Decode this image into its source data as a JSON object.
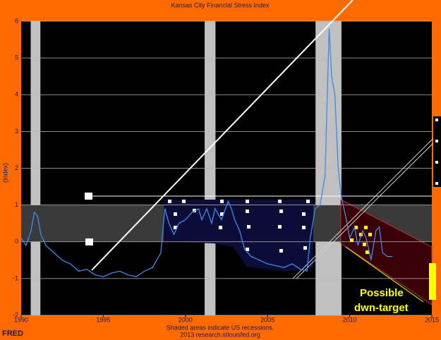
{
  "chart_data": {
    "type": "line",
    "title": "Kansas City Financial Stress Index",
    "ylabel": "(Index)",
    "x": [
      1990.0,
      1990.3,
      1990.6,
      1990.8,
      1991.0,
      1991.2,
      1991.5,
      1992.0,
      1992.5,
      1993.0,
      1993.5,
      1994.0,
      1994.5,
      1995.0,
      1995.5,
      1996.0,
      1996.5,
      1997.0,
      1997.5,
      1998.0,
      1998.5,
      1998.75,
      1999.0,
      1999.3,
      1999.6,
      2000.0,
      2000.4,
      2000.8,
      2001.0,
      2001.3,
      2001.6,
      2001.8,
      2002.2,
      2002.6,
      2002.8,
      2003.0,
      2003.3,
      2003.6,
      2004.0,
      2004.5,
      2005.0,
      2005.5,
      2006.0,
      2006.5,
      2007.0,
      2007.4,
      2007.6,
      2007.9,
      2008.2,
      2008.5,
      2008.75,
      2008.9,
      2009.1,
      2009.3,
      2009.5,
      2009.8,
      2010.0,
      2010.3,
      2010.5,
      2010.8,
      2011.0,
      2011.3,
      2011.6,
      2011.8,
      2012.0,
      2012.3,
      2012.6
    ],
    "values": [
      0.1,
      -0.1,
      0.3,
      0.8,
      0.7,
      0.2,
      -0.1,
      -0.3,
      -0.5,
      -0.6,
      -0.8,
      -0.75,
      -0.9,
      -0.95,
      -0.85,
      -0.8,
      -0.9,
      -0.95,
      -0.8,
      -0.7,
      -0.3,
      0.9,
      0.5,
      0.2,
      0.5,
      0.6,
      0.8,
      0.9,
      0.6,
      0.9,
      0.5,
      0.9,
      0.6,
      1.1,
      0.9,
      0.6,
      0.3,
      -0.2,
      -0.4,
      -0.5,
      -0.6,
      -0.65,
      -0.7,
      -0.6,
      -0.75,
      -0.8,
      0.1,
      0.9,
      1.0,
      1.8,
      5.8,
      4.5,
      4.0,
      2.0,
      1.2,
      0.6,
      0.1,
      0.4,
      -0.1,
      0.3,
      0.1,
      -0.5,
      0.3,
      0.4,
      -0.3,
      -0.4,
      -0.4
    ],
    "color": "#3d8be8",
    "recessions": [
      [
        1990.58,
        1991.17
      ],
      [
        2001.17,
        2001.83
      ],
      [
        2007.92,
        2009.5
      ]
    ],
    "xlim": [
      1990,
      2015
    ],
    "xticks": [
      1990,
      1995,
      2000,
      2005,
      2010,
      2015
    ],
    "ylim": [
      -2,
      6
    ],
    "yticks": [
      -2,
      -1,
      0,
      1,
      2,
      3,
      4,
      5,
      6
    ],
    "grid": true,
    "annotation": [
      "Possible",
      "dwn-target"
    ],
    "notes": [
      "Shaded areas indicate US recessions.",
      "2013 research.stlouisfed.org"
    ],
    "logo": "FRED"
  }
}
